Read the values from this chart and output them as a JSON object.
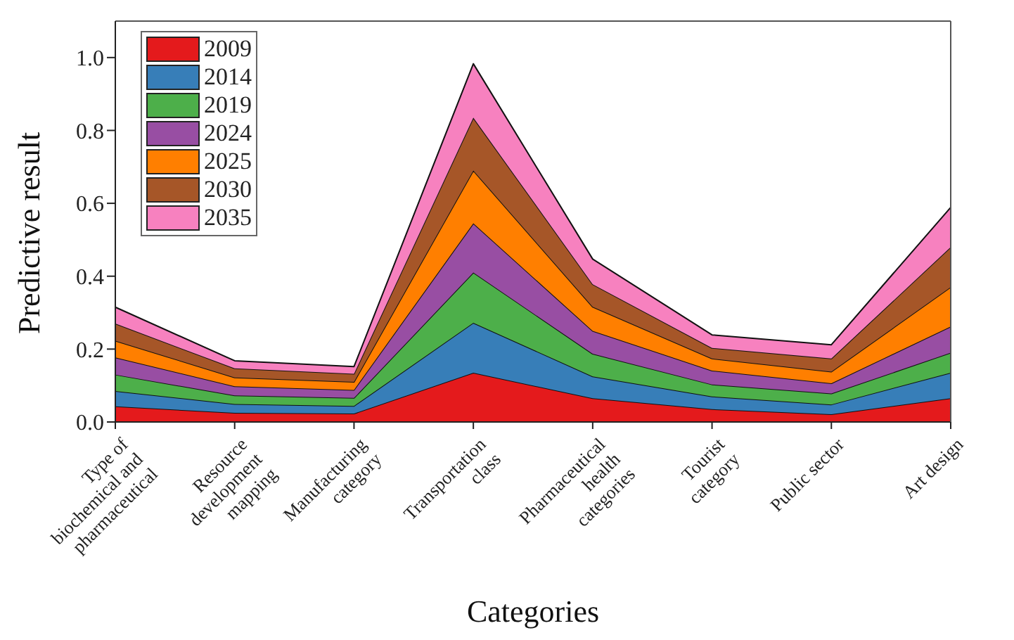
{
  "chart_data": {
    "type": "area",
    "stacked": true,
    "xlabel": "Categories",
    "ylabel": "Predictive result",
    "categories": [
      "Type of biochemical and pharmaceutical",
      "Resource development mapping",
      "Manufacturing category",
      "Transportation class",
      "Pharmaceutical health categories",
      "Tourist category",
      "Public sector",
      "Art design"
    ],
    "series": [
      {
        "name": "2009",
        "color": "#e41a1c",
        "values": [
          0.043,
          0.025,
          0.023,
          0.135,
          0.065,
          0.035,
          0.021,
          0.065
        ]
      },
      {
        "name": "2014",
        "color": "#377eb8",
        "values": [
          0.042,
          0.024,
          0.021,
          0.137,
          0.06,
          0.035,
          0.027,
          0.07
        ]
      },
      {
        "name": "2019",
        "color": "#4daf4a",
        "values": [
          0.045,
          0.024,
          0.022,
          0.138,
          0.062,
          0.033,
          0.03,
          0.055
        ]
      },
      {
        "name": "2024",
        "color": "#984ea3",
        "values": [
          0.047,
          0.025,
          0.022,
          0.135,
          0.063,
          0.038,
          0.028,
          0.072
        ]
      },
      {
        "name": "2025",
        "color": "#ff7f00",
        "values": [
          0.046,
          0.024,
          0.022,
          0.145,
          0.066,
          0.033,
          0.032,
          0.108
        ]
      },
      {
        "name": "2030",
        "color": "#a65628",
        "values": [
          0.047,
          0.025,
          0.022,
          0.145,
          0.062,
          0.029,
          0.036,
          0.11
        ]
      },
      {
        "name": "2035",
        "color": "#f781bf",
        "values": [
          0.045,
          0.021,
          0.02,
          0.148,
          0.069,
          0.036,
          0.038,
          0.109
        ]
      }
    ],
    "ylim": [
      0,
      1.1
    ],
    "yticks": [
      {
        "value": 0,
        "label": "0.0"
      },
      {
        "value": 0.2,
        "label": "0.2"
      },
      {
        "value": 0.4,
        "label": "0.4"
      },
      {
        "value": 0.6,
        "label": "0.6"
      },
      {
        "value": 0.8,
        "label": "0.8"
      },
      {
        "value": 1,
        "label": "1.0"
      }
    ],
    "legend": "top left",
    "grid": false
  }
}
